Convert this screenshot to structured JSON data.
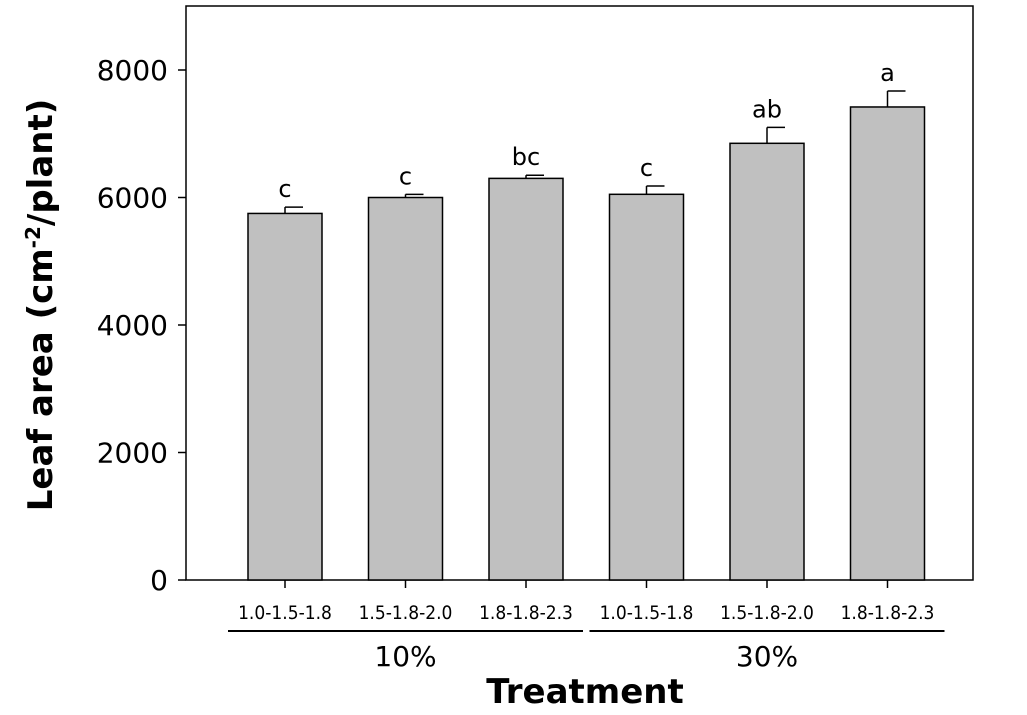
{
  "chart_data": {
    "type": "bar",
    "categories": [
      "1.0-1.5-1.8",
      "1.5-1.8-2.0",
      "1.8-1.8-2.3",
      "1.0-1.5-1.8",
      "1.5-1.8-2.0",
      "1.8-1.8-2.3"
    ],
    "values": [
      5750,
      6000,
      6300,
      6050,
      6850,
      7420
    ],
    "errors": [
      100,
      50,
      50,
      130,
      250,
      250
    ],
    "significance": [
      "c",
      "c",
      "bc",
      "c",
      "ab",
      "a"
    ],
    "groups": [
      {
        "label": "10%",
        "categories": [
          0,
          1,
          2
        ]
      },
      {
        "label": "30%",
        "categories": [
          3,
          4,
          5
        ]
      }
    ],
    "yticks": [
      0,
      2000,
      4000,
      6000,
      8000
    ],
    "ylim": [
      0,
      8000
    ],
    "xlabel": "Treatment",
    "ylabel": {
      "prefix": "Leaf area (cm",
      "superscript": "-2",
      "suffix": "/plant)"
    },
    "bar_color": "#c0c0c0",
    "bar_edge_color": "#000000",
    "grid": false
  }
}
